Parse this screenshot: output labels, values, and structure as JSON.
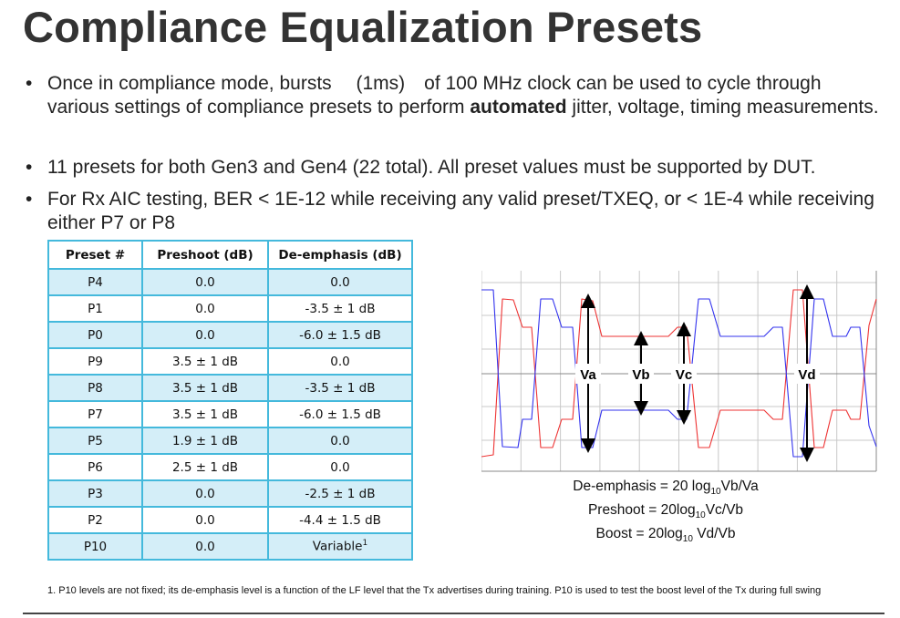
{
  "title": "Compliance Equalization Presets",
  "bullets": [
    {
      "before": "Once in compliance mode, bursts 　(1ms)　of 100 MHz clock can be used to cycle through various settings of compliance presets to perform ",
      "bold": "automated",
      "after": " jitter, voltage, timing measurements."
    },
    {
      "before": "11 presets for both Gen3 and Gen4 (22 total).  All preset values must be supported by DUT.",
      "bold": "",
      "after": ""
    },
    {
      "before": "For Rx AIC testing, BER < 1E-12 while receiving any valid preset/TXEQ, or < 1E-4 while receiving either P7 or P8",
      "bold": "",
      "after": ""
    }
  ],
  "bullet_glyph": "•",
  "table": {
    "headers": [
      "Preset #",
      "Preshoot (dB)",
      "De-emphasis (dB)"
    ],
    "rows": [
      [
        "P4",
        "0.0",
        "0.0"
      ],
      [
        "P1",
        "0.0",
        "-3.5 ± 1 dB"
      ],
      [
        "P0",
        "0.0",
        "-6.0 ± 1.5 dB"
      ],
      [
        "P9",
        "3.5 ± 1 dB",
        "0.0"
      ],
      [
        "P8",
        "3.5 ± 1 dB",
        "-3.5 ± 1 dB"
      ],
      [
        "P7",
        "3.5 ± 1 dB",
        "-6.0 ± 1.5 dB"
      ],
      [
        "P5",
        "1.9 ± 1 dB",
        "0.0"
      ],
      [
        "P6",
        "2.5 ± 1 dB",
        "0.0"
      ],
      [
        "P3",
        "0.0",
        "-2.5 ± 1 dB"
      ],
      [
        "P2",
        "0.0",
        "-4.4 ± 1.5 dB"
      ],
      [
        "P10",
        "0.0",
        "Variable"
      ]
    ],
    "footnote_marker": "1",
    "accent_color": "#44b9dc",
    "alt_row_color": "#d4eef8"
  },
  "waveform": {
    "labels": {
      "va": "Va",
      "vb": "Vb",
      "vc": "Vc",
      "vd": "Vd"
    },
    "colors": {
      "positive": "#ee3333",
      "negative": "#3333ee",
      "grid": "#c8c8c8"
    }
  },
  "formulas": [
    {
      "pre": "De-emphasis = 20 log",
      "sub": "10",
      "post": "Vb/Va"
    },
    {
      "pre": "Preshoot = 20log",
      "sub": "10",
      "post": "Vc/Vb"
    },
    {
      "pre": "Boost = 20log",
      "sub": "10",
      "post": " Vd/Vb"
    }
  ],
  "footnote": "1.  P10 levels are not fixed; its de-emphasis level is a function of the LF level that the Tx advertises during training.  P10 is used to test the boost level of the Tx during full swing"
}
